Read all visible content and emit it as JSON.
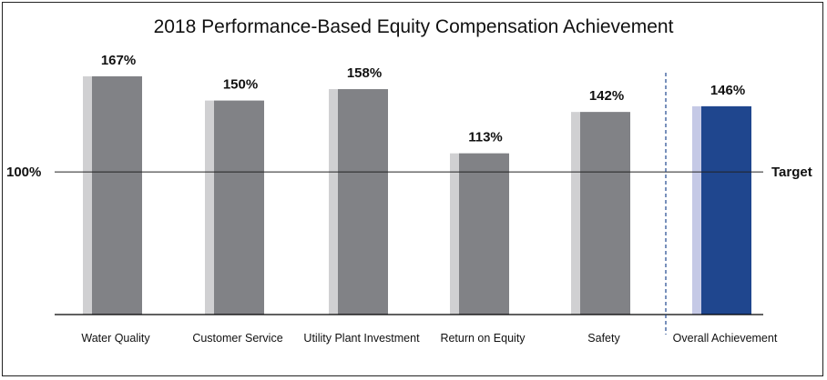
{
  "chart_data": {
    "type": "bar",
    "title": "2018 Performance-Based Equity Compensation Achievement",
    "categories": [
      "Water Quality",
      "Customer Service",
      "Utility Plant Investment",
      "Return on Equity",
      "Safety",
      "Overall Achievement"
    ],
    "values": [
      167,
      150,
      158,
      113,
      142,
      146
    ],
    "value_labels": [
      "167%",
      "150%",
      "158%",
      "113%",
      "142%",
      "146%"
    ],
    "reference_line": {
      "value": 100,
      "left_label": "100%",
      "right_label": "Target"
    },
    "ylim": [
      0,
      195
    ],
    "grid": false,
    "legend": "none",
    "colors": {
      "bar": "#818286",
      "bar_shadow": "#d0d0d2",
      "highlight_bar": "#1f468e",
      "highlight_shadow": "#c5c9e6",
      "divider": "#1f468e",
      "axis": "#000000"
    }
  }
}
